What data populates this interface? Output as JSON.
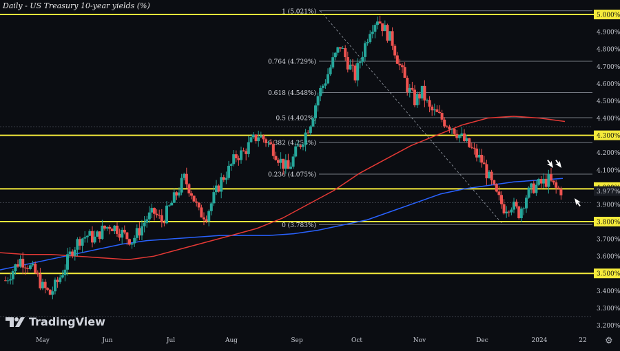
{
  "chart_data": {
    "type": "candlestick",
    "title": "Daily - US Treasury 10-year yields (%)",
    "x_labels": [
      "May",
      "Jun",
      "Jul",
      "Aug",
      "Sep",
      "Oct",
      "Nov",
      "Dec",
      "2024",
      "22"
    ],
    "ylim": [
      3.17,
      5.06
    ],
    "y_ticks": [
      "5.000%",
      "4.900%",
      "4.800%",
      "4.700%",
      "4.600%",
      "4.500%",
      "4.400%",
      "4.300%",
      "4.200%",
      "4.100%",
      "4.000%",
      "3.977%",
      "3.900%",
      "3.800%",
      "3.700%",
      "3.600%",
      "3.500%",
      "3.400%",
      "3.300%",
      "3.200%"
    ],
    "horizontal_levels": [
      5.0,
      4.3,
      3.99,
      3.8,
      3.5
    ],
    "fib_levels": [
      {
        "ratio": "1",
        "label": "1 (5.021%)",
        "value": 5.021
      },
      {
        "ratio": "0.764",
        "label": "0.764 (4.729%)",
        "value": 4.729
      },
      {
        "ratio": "0.618",
        "label": "0.618 (4.548%)",
        "value": 4.548
      },
      {
        "ratio": "0.5",
        "label": "0.5 (4.402%)",
        "value": 4.402
      },
      {
        "ratio": "0.382",
        "label": "0.382 (4.258%)",
        "value": 4.258
      },
      {
        "ratio": "0.236",
        "label": "0.236 (4.075%)",
        "value": 4.075
      },
      {
        "ratio": "0",
        "label": "0 (3.783%)",
        "value": 3.783
      }
    ],
    "current_price": "3.977%",
    "close_series": [
      3.46,
      3.52,
      3.58,
      3.55,
      3.5,
      3.42,
      3.38,
      3.45,
      3.54,
      3.64,
      3.7,
      3.72,
      3.7,
      3.75,
      3.78,
      3.76,
      3.72,
      3.69,
      3.75,
      3.82,
      3.85,
      3.8,
      3.88,
      3.96,
      4.05,
      3.97,
      3.85,
      3.84,
      3.94,
      4.04,
      4.1,
      4.18,
      4.2,
      4.26,
      4.3,
      4.27,
      4.22,
      4.15,
      4.1,
      4.2,
      4.28,
      4.38,
      4.53,
      4.62,
      4.73,
      4.82,
      4.72,
      4.64,
      4.78,
      4.92,
      4.98,
      4.91,
      4.84,
      4.7,
      4.58,
      4.5,
      4.55,
      4.45,
      4.42,
      4.38,
      4.35,
      4.3,
      4.25,
      4.2,
      4.15,
      4.05,
      3.95,
      3.88,
      3.9,
      3.85,
      3.95,
      4.0,
      4.02,
      4.04,
      3.99,
      3.977
    ],
    "series": [
      {
        "name": "",
        "color": "#2962ff",
        "values": [
          3.52,
          3.55,
          3.58,
          3.61,
          3.64,
          3.67,
          3.69,
          3.7,
          3.71,
          3.72,
          3.72,
          3.72,
          3.73,
          3.75,
          3.78,
          3.81,
          3.86,
          3.91,
          3.96,
          3.99,
          4.01,
          4.03,
          4.04,
          4.05
        ]
      },
      {
        "name": "",
        "color": "#e53935",
        "values": [
          3.62,
          3.61,
          3.61,
          3.6,
          3.59,
          3.58,
          3.6,
          3.64,
          3.68,
          3.72,
          3.76,
          3.82,
          3.9,
          3.98,
          4.08,
          4.16,
          4.24,
          4.3,
          4.36,
          4.4,
          4.41,
          4.4,
          4.38
        ]
      }
    ]
  },
  "brand": {
    "name": "TradingView"
  },
  "icons": {
    "settings": "gear-icon"
  }
}
